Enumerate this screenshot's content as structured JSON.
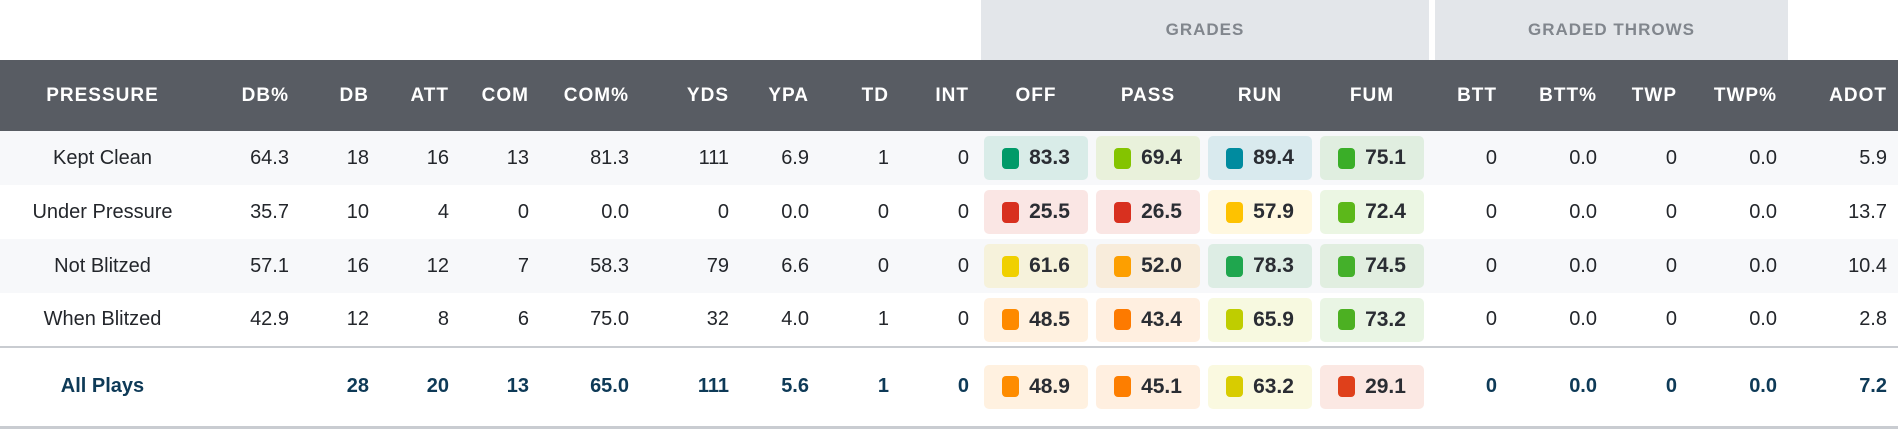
{
  "groups": {
    "grades": "GRADES",
    "graded_throws": "GRADED THROWS"
  },
  "columns": [
    "PRESSURE",
    "DB%",
    "DB",
    "ATT",
    "COM",
    "COM%",
    "YDS",
    "YPA",
    "TD",
    "INT",
    "OFF",
    "PASS",
    "RUN",
    "FUM",
    "BTT",
    "BTT%",
    "TWP",
    "TWP%",
    "ADOT"
  ],
  "rows": [
    {
      "label": "Kept Clean",
      "stats": [
        "64.3",
        "18",
        "16",
        "13",
        "81.3",
        "111",
        "6.9",
        "1",
        "0"
      ],
      "grades": [
        {
          "v": "83.3",
          "c": "#009a68"
        },
        {
          "v": "69.4",
          "c": "#84c400"
        },
        {
          "v": "89.4",
          "c": "#008b9f"
        },
        {
          "v": "75.1",
          "c": "#3aae28"
        }
      ],
      "throws": [
        "0",
        "0.0",
        "0",
        "0.0",
        "5.9"
      ]
    },
    {
      "label": "Under Pressure",
      "stats": [
        "35.7",
        "10",
        "4",
        "0",
        "0.0",
        "0",
        "0.0",
        "0",
        "0"
      ],
      "grades": [
        {
          "v": "25.5",
          "c": "#d8301f"
        },
        {
          "v": "26.5",
          "c": "#d8301f"
        },
        {
          "v": "57.9",
          "c": "#fec200"
        },
        {
          "v": "72.4",
          "c": "#5cb81a"
        }
      ],
      "throws": [
        "0",
        "0.0",
        "0",
        "0.0",
        "13.7"
      ]
    },
    {
      "label": "Not Blitzed",
      "stats": [
        "57.1",
        "16",
        "12",
        "7",
        "58.3",
        "79",
        "6.6",
        "0",
        "0"
      ],
      "grades": [
        {
          "v": "61.6",
          "c": "#f0d000"
        },
        {
          "v": "52.0",
          "c": "#fd9f00"
        },
        {
          "v": "78.3",
          "c": "#1fa64e"
        },
        {
          "v": "74.5",
          "c": "#44b02a"
        }
      ],
      "throws": [
        "0",
        "0.0",
        "0",
        "0.0",
        "10.4"
      ]
    },
    {
      "label": "When Blitzed",
      "stats": [
        "42.9",
        "12",
        "8",
        "6",
        "75.0",
        "32",
        "4.0",
        "1",
        "0"
      ],
      "grades": [
        {
          "v": "48.5",
          "c": "#fe8a00"
        },
        {
          "v": "43.4",
          "c": "#fd7a00"
        },
        {
          "v": "65.9",
          "c": "#bfcd00"
        },
        {
          "v": "73.2",
          "c": "#4cb022"
        }
      ],
      "throws": [
        "0",
        "0.0",
        "0",
        "0.0",
        "2.8"
      ]
    }
  ],
  "total": {
    "label": "All Plays",
    "stats": [
      "",
      "28",
      "20",
      "13",
      "65.0",
      "111",
      "5.6",
      "1",
      "0"
    ],
    "grades": [
      {
        "v": "48.9",
        "c": "#fe8c00"
      },
      {
        "v": "45.1",
        "c": "#fd7e00"
      },
      {
        "v": "63.2",
        "c": "#d8cc00"
      },
      {
        "v": "29.1",
        "c": "#df401b"
      }
    ],
    "throws": [
      "0",
      "0.0",
      "0",
      "0.0",
      "7.2"
    ]
  }
}
